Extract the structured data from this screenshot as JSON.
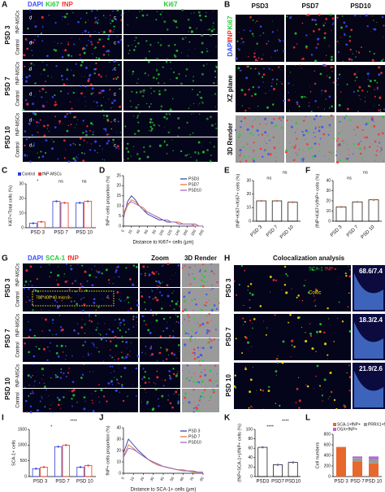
{
  "panel_labels": [
    "A",
    "B",
    "C",
    "D",
    "E",
    "F",
    "G",
    "H",
    "I",
    "J",
    "K",
    "L"
  ],
  "panel_a": {
    "stain": [
      "DAPI",
      "Ki67",
      "fNP"
    ],
    "single": "Ki67",
    "groups": [
      "PSD 3",
      "PSD 7",
      "PSD 10"
    ],
    "rows": [
      "fNP-MSCs",
      "Control"
    ],
    "region_marks": [
      "d",
      "c"
    ]
  },
  "panel_b": {
    "columns": [
      "PSD3",
      "PSD7",
      "PSD10"
    ],
    "stain": [
      "DAPI",
      "fNP",
      "Ki67"
    ],
    "rows": [
      "XZ plane",
      "3D Render"
    ]
  },
  "panel_g": {
    "stain": [
      "DAPI",
      "SCA-1",
      "fNP"
    ],
    "columns": [
      "Zoom",
      "3D Render"
    ],
    "groups": [
      "PSD 3",
      "PSD 7",
      "PSD 10"
    ],
    "rows": [
      "fNP-MSCs",
      "Control"
    ],
    "note": "700*400*40 micron"
  },
  "panel_h": {
    "title": "Colocalization analysis",
    "stain": [
      "SCA-1",
      "fNP"
    ],
    "coloc": "Coloc",
    "groups": [
      "PSD 3",
      "PSD 7",
      "PSD 10"
    ],
    "ratios": [
      "68.6/7.4",
      "18.3/2.4",
      "21.9/2.6"
    ]
  },
  "chart_data": [
    {
      "type": "bar",
      "ylabel": "Ki67+/Total cells (%)",
      "categories": [
        "PSD 3",
        "PSD 7",
        "PSD 10"
      ],
      "series": [
        {
          "name": "Control",
          "color": "#2f3fd6",
          "values": [
            3,
            18,
            17
          ]
        },
        {
          "name": "fNP-MSCs",
          "color": "#e23b2e",
          "values": [
            4,
            17,
            18
          ]
        }
      ],
      "ylim": [
        0,
        30
      ],
      "yticks": [
        0,
        10,
        20,
        30
      ],
      "annotations": [
        "*",
        "ns",
        "ns"
      ],
      "legend": "top"
    },
    {
      "type": "line",
      "ylabel": "fNP+ cells proportion (%)",
      "xlabel": "Distance to Ki67+ cells (μm)",
      "x": [
        0,
        10,
        20,
        30,
        40,
        50,
        60,
        70,
        80,
        90,
        100,
        110,
        120,
        130,
        140,
        150,
        160,
        170,
        180,
        190,
        200
      ],
      "series": [
        {
          "name": "PSD3",
          "color": "#2b3aa8",
          "values": [
            4,
            12,
            15,
            13,
            10,
            8,
            6,
            5,
            4,
            3,
            3,
            2,
            2,
            2,
            1,
            1,
            1,
            1,
            1,
            0,
            0
          ]
        },
        {
          "name": "PSD7",
          "color": "#e0742a",
          "values": [
            5,
            10,
            13,
            12,
            10,
            9,
            7,
            6,
            5,
            4,
            3,
            3,
            2,
            2,
            2,
            1,
            1,
            1,
            0,
            0,
            0
          ]
        },
        {
          "name": "PSD10",
          "color": "#9a5fc0",
          "values": [
            6,
            11,
            12,
            11,
            10,
            8,
            7,
            6,
            5,
            4,
            3,
            3,
            2,
            2,
            1,
            1,
            1,
            1,
            1,
            0,
            0
          ]
        }
      ],
      "xlim": [
        0,
        200
      ],
      "xticks": [
        0,
        20,
        40,
        60,
        80,
        100,
        120,
        140,
        160,
        180,
        200
      ],
      "ylim": [
        0,
        25
      ],
      "yticks": [
        0,
        5,
        10,
        15,
        20,
        25
      ],
      "legend": "upper right"
    },
    {
      "type": "bar",
      "ylabel": "(fNP+Ki67+/Ki67+ cells (%)",
      "categories": [
        "PSD 3",
        "PSD 7",
        "PSD 10"
      ],
      "values": [
        15,
        15,
        14
      ],
      "color": "#e2703a",
      "ylim": [
        0,
        30
      ],
      "yticks": [
        0,
        10,
        20,
        30
      ],
      "annotations": [
        "ns",
        "ns"
      ]
    },
    {
      "type": "bar",
      "ylabel": "(fNP+Ki67+)/fNP+ cells (%)",
      "categories": [
        "PSD 3",
        "PSD 7",
        "PSD 10"
      ],
      "values": [
        14,
        19,
        21
      ],
      "color": "#e2703a",
      "ylim": [
        0,
        40
      ],
      "yticks": [
        0,
        10,
        20,
        30,
        40
      ],
      "annotations": [
        "ns",
        "ns"
      ]
    },
    {
      "type": "bar",
      "ylabel": "SCA-1+ cells",
      "categories": [
        "PSD 3",
        "PSD 7",
        "PSD 10"
      ],
      "series": [
        {
          "color": "#2f3fd6",
          "values": [
            250,
            950,
            300
          ]
        },
        {
          "color": "#e23b2e",
          "values": [
            300,
            1000,
            350
          ]
        }
      ],
      "ylim": [
        0,
        1500
      ],
      "yticks": [
        0,
        500,
        1000,
        1500
      ],
      "annotations": [
        "*",
        "****"
      ]
    },
    {
      "type": "line",
      "ylabel": "fNP+ cells proportion (%)",
      "xlabel": "Distance to SCA-1+ cells (μm)",
      "x": [
        0,
        5,
        10,
        15,
        20,
        25,
        30,
        35,
        40,
        45,
        50,
        55,
        60,
        65,
        70,
        75,
        80
      ],
      "series": [
        {
          "name": "PSD 3",
          "color": "#2b3aa8",
          "values": [
            18,
            30,
            25,
            20,
            16,
            12,
            10,
            8,
            6,
            5,
            4,
            3,
            3,
            2,
            2,
            1,
            1
          ]
        },
        {
          "name": "PSD 7",
          "color": "#e0742a",
          "values": [
            15,
            25,
            22,
            18,
            15,
            12,
            9,
            7,
            6,
            5,
            4,
            3,
            2,
            2,
            1,
            1,
            1
          ]
        },
        {
          "name": "PSD10",
          "color": "#9a5fc0",
          "values": [
            14,
            22,
            21,
            18,
            15,
            12,
            10,
            8,
            6,
            5,
            4,
            3,
            3,
            2,
            2,
            1,
            1
          ]
        }
      ],
      "xlim": [
        0,
        80
      ],
      "xticks": [
        0,
        10,
        20,
        30,
        40,
        50,
        60,
        70,
        80
      ],
      "ylim": [
        0,
        40
      ],
      "yticks": [
        0,
        10,
        20,
        30,
        40
      ],
      "legend": "upper right"
    },
    {
      "type": "bar",
      "ylabel": "(fNP+SCA-1+)/fNP+ cells (%)",
      "categories": [
        "PSD3",
        "PSD7",
        "PSD10"
      ],
      "values": [
        62,
        25,
        30
      ],
      "color": "#7a4fb5",
      "ylim": [
        0,
        100
      ],
      "yticks": [
        0,
        20,
        40,
        60,
        80,
        100
      ],
      "annotations": [
        "****",
        "****"
      ]
    },
    {
      "type": "stacked_bar",
      "ylabel": "Cell numbers",
      "categories": [
        "PSD 3",
        "PSD 7",
        "PSD 10"
      ],
      "series": [
        {
          "name": "SCA-1+fNP+",
          "color": "#e8672c",
          "values": [
            560,
            290,
            250
          ]
        },
        {
          "name": "PRRX1+fNP+",
          "color": "#9a9a9a",
          "values": [
            0,
            60,
            80
          ]
        },
        {
          "name": "OSX+fNP+",
          "color": "#b468d0",
          "values": [
            0,
            30,
            50
          ]
        }
      ],
      "ylim": [
        0,
        800
      ],
      "yticks": [
        0,
        200,
        400,
        600,
        800
      ],
      "legend": "top"
    }
  ]
}
